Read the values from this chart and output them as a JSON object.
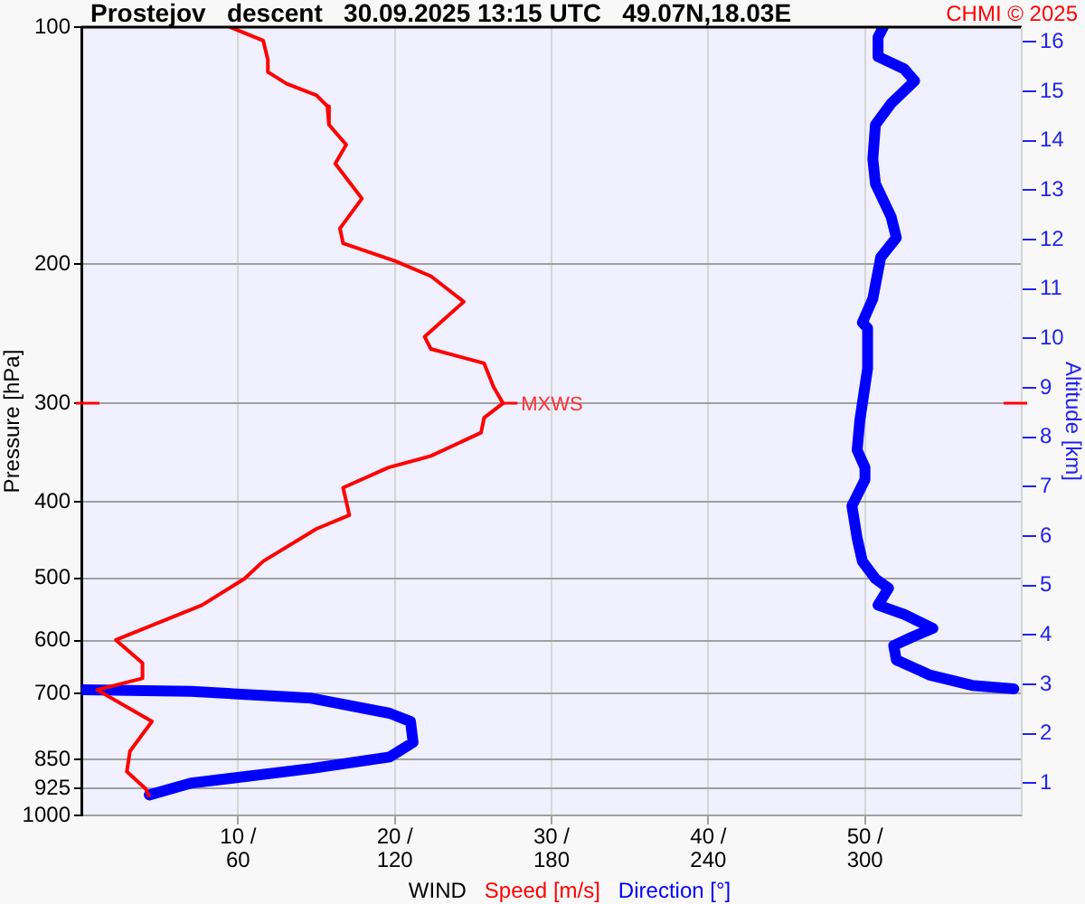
{
  "chart_data": {
    "type": "line",
    "orientation": "horizontal",
    "title": "Prostejov   descent   30.09.2025 13:15 UTC   49.07N,18.03E",
    "xlabel": "WIND",
    "ylabel": "Pressure [hPa]",
    "y2label": "Altitude [km]",
    "annotations": [
      "CHMI © 2025",
      {
        "text": "MXWS",
        "x": 26.9,
        "y": 300
      }
    ],
    "xlim": [
      0,
      60
    ],
    "xticks": [
      {
        "value": 10,
        "label": "10 /"
      },
      {
        "value": 20,
        "label": "20 /"
      },
      {
        "value": 30,
        "label": "30 /"
      },
      {
        "value": 40,
        "label": "40 /"
      },
      {
        "value": 50,
        "label": "50 /"
      }
    ],
    "x2lim": [
      0,
      360
    ],
    "x2ticks": [
      60,
      120,
      180,
      240,
      300
    ],
    "ylim": [
      1000,
      100
    ],
    "yticks": [
      100,
      200,
      300,
      400,
      500,
      600,
      700,
      850,
      925,
      1000
    ],
    "log": "y",
    "y2lim": [
      0.35,
      16.3
    ],
    "y2ticks": [
      1,
      2,
      3,
      4,
      5,
      6,
      7,
      8,
      9,
      10,
      11,
      12,
      13,
      14,
      15,
      16
    ],
    "grid": true,
    "legend": "bottom",
    "marker": "none",
    "series": [
      {
        "name": "Speed [m/s]",
        "color": "#ff0000",
        "values": [
          9.5,
          11.6,
          11.9,
          11.9,
          13.1,
          15.0,
          15.7,
          15.8,
          16.9,
          16.2,
          17.9,
          16.5,
          16.7,
          20.0,
          22.3,
          24.4,
          21.9,
          22.3,
          25.7,
          26.3,
          26.9,
          25.7,
          25.5,
          22.3,
          19.6,
          16.7,
          17.1,
          15.0,
          11.6,
          10.4,
          7.7,
          2.2,
          3.9,
          3.9,
          1.0,
          4.5,
          3.1,
          2.9,
          4.1,
          4.3
        ],
        "x": [
          100,
          104,
          110,
          114,
          118,
          122,
          126,
          133,
          141,
          149,
          165,
          180,
          188,
          198,
          207,
          223,
          247,
          256,
          267,
          286,
          300,
          313,
          327,
          350,
          362,
          384,
          416,
          433,
          476,
          501,
          541,
          599,
          641,
          670,
          693,
          760,
          829,
          880,
          925,
          944
        ]
      },
      {
        "name": "Direction [°]",
        "color": "#0000ff",
        "axis": "x2",
        "values": [
          307,
          305,
          305,
          315,
          319,
          310,
          304,
          303,
          304,
          310,
          312,
          306,
          303,
          299,
          301,
          301,
          299,
          298,
          297,
          300,
          300,
          295,
          297,
          299,
          304,
          309,
          305,
          315,
          326,
          318,
          311,
          312,
          325,
          341,
          357,
          null,
          0.5,
          42,
          88,
          118,
          126,
          127,
          118,
          88,
          42,
          26
        ],
        "x": [
          100,
          103,
          109,
          113,
          117,
          125,
          133,
          147,
          158,
          174,
          185,
          196,
          221,
          237,
          241,
          271,
          300,
          316,
          344,
          362,
          375,
          405,
          445,
          476,
          501,
          515,
          541,
          556,
          579,
          594,
          609,
          635,
          664,
          684,
          691,
          null,
          693,
          696,
          710,
          742,
          760,
          808,
          843,
          872,
          910,
          942
        ]
      }
    ]
  }
}
